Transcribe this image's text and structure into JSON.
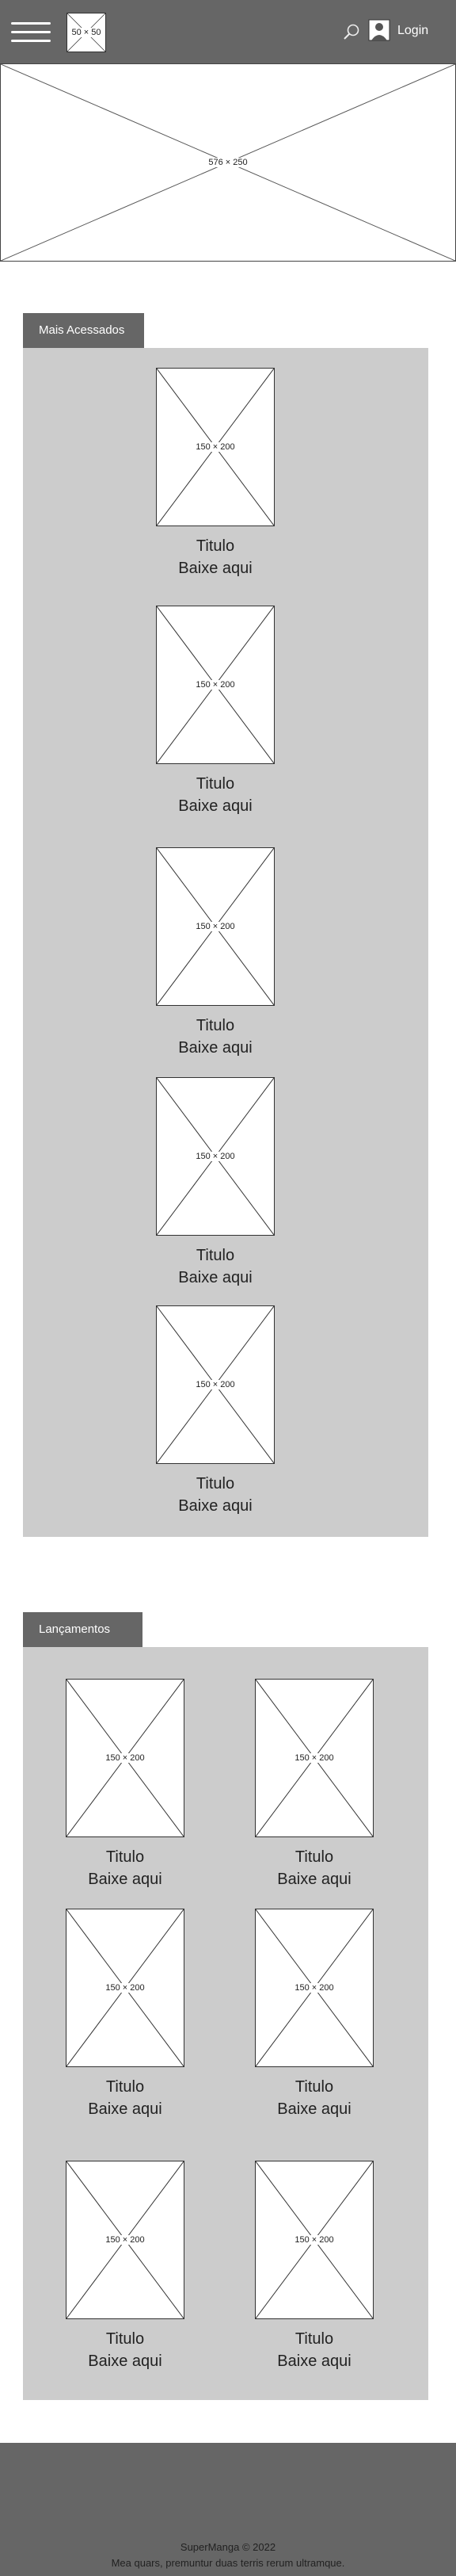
{
  "header": {
    "logo_label": "50 × 50",
    "login_label": "Login",
    "icons": {
      "menu": "hamburger-icon",
      "search": "search-icon",
      "user": "user-icon"
    }
  },
  "hero": {
    "label": "576 × 250"
  },
  "most_accessed": {
    "tab_label": "Mais Acessados",
    "cards": [
      {
        "thumb": "150 × 200",
        "title": "Titulo",
        "cta": "Baixe aqui"
      },
      {
        "thumb": "150 × 200",
        "title": "Titulo",
        "cta": "Baixe aqui"
      },
      {
        "thumb": "150 × 200",
        "title": "Titulo",
        "cta": "Baixe aqui"
      },
      {
        "thumb": "150 × 200",
        "title": "Titulo",
        "cta": "Baixe aqui"
      },
      {
        "thumb": "150 × 200",
        "title": "Titulo",
        "cta": "Baixe aqui"
      }
    ]
  },
  "releases": {
    "tab_label": "Lançamentos",
    "cards": [
      {
        "thumb": "150 × 200",
        "title": "Titulo",
        "cta": "Baixe aqui"
      },
      {
        "thumb": "150 × 200",
        "title": "Titulo",
        "cta": "Baixe aqui"
      },
      {
        "thumb": "150 × 200",
        "title": "Titulo",
        "cta": "Baixe aqui"
      },
      {
        "thumb": "150 × 200",
        "title": "Titulo",
        "cta": "Baixe aqui"
      },
      {
        "thumb": "150 × 200",
        "title": "Titulo",
        "cta": "Baixe aqui"
      },
      {
        "thumb": "150 × 200",
        "title": "Titulo",
        "cta": "Baixe aqui"
      }
    ]
  },
  "footer": {
    "copyright": "SuperManga © 2022",
    "tagline": "Mea quars, premuntur duas terris rerum ultramque."
  }
}
